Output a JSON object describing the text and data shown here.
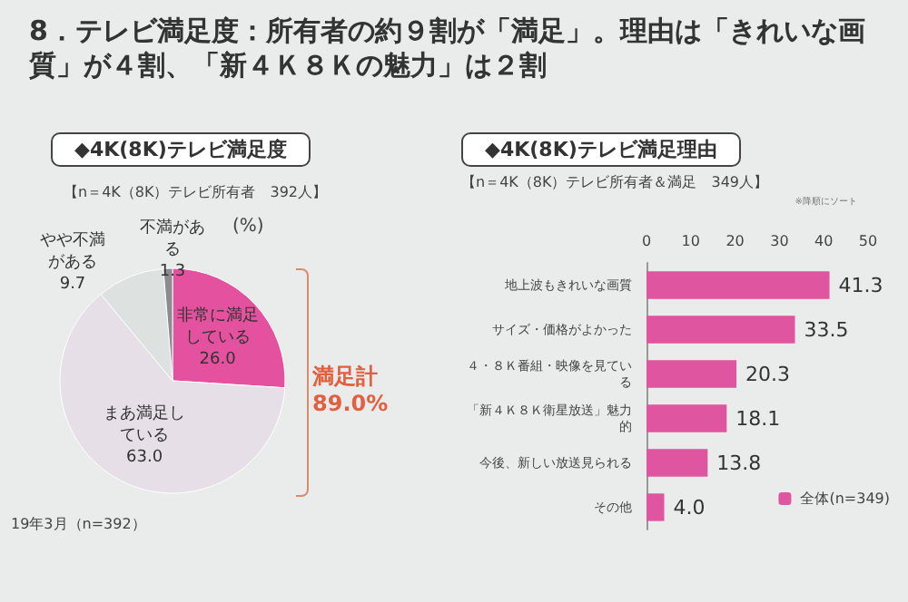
{
  "chart_data": [
    {
      "type": "pie",
      "title": "8．テレビ満足度：所有者の約９割が「満足」。理由は「きれいな画質」が４割、「新４Ｋ８Ｋの魅力」は２割",
      "subtitle": "◆4K(8K)テレビ満足度",
      "categories": [
        "非常に満足している",
        "まあ満足している",
        "やや不満がある",
        "不満がある"
      ],
      "values": [
        26.0,
        63.0,
        9.7,
        1.3
      ],
      "colors": [
        "#e4529f",
        "#e6dfe8",
        "#dde2e1",
        "#8c8c8c"
      ],
      "value_labels": [
        "26.0",
        "63.0",
        "9.7",
        "1.3"
      ],
      "annotations": [
        "【n＝4K（8K）テレビ所有者　392人】",
        "(%)",
        "満足計 89.0%",
        "19年3月（n=392）"
      ]
    },
    {
      "type": "bar",
      "orientation": "horizontal",
      "title": "◆4K(8K)テレビ満足理由",
      "subtitle": "【n＝4K（8K）テレビ所有者＆満足　349人】",
      "categories": [
        "地上波もきれいな画質",
        "サイズ・価格がよかった",
        "４・８Ｋ番組・映像を見ている",
        "「新４Ｋ８Ｋ衛星放送」魅力的",
        "今後、新しい放送見られる",
        "その他"
      ],
      "series": [
        {
          "name": "全体(n=349)",
          "color": "#e0559f",
          "values": [
            41.3,
            33.5,
            20.3,
            18.1,
            13.8,
            4.0
          ],
          "value_labels": [
            "41.3",
            "33.5",
            "20.3",
            "18.1",
            "13.8",
            "4.0"
          ]
        }
      ],
      "xlim": [
        0,
        50
      ],
      "xticks": [
        0,
        10,
        20,
        30,
        40,
        50
      ],
      "grid": false,
      "legend": "bottom right",
      "annotations": [
        "※降順にソート"
      ]
    }
  ]
}
